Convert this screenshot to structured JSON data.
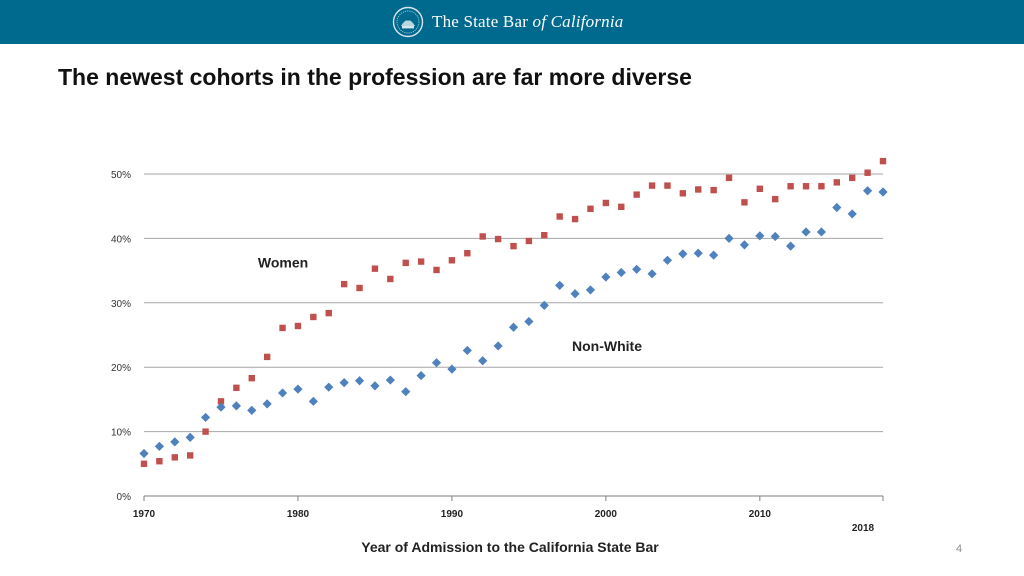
{
  "header": {
    "brand_prefix": "The State Bar ",
    "brand_emphasis": "of California",
    "logo_icon": "state-bar-seal-icon",
    "background_color": "#006a8e"
  },
  "slide": {
    "title": "The newest cohorts in the profession are far more diverse",
    "page_number": "4"
  },
  "chart_data": {
    "type": "scatter",
    "title": "",
    "xlabel": "Year of Admission to the California State Bar",
    "ylabel": "",
    "xlim": [
      1970,
      2018
    ],
    "ylim": [
      0,
      50
    ],
    "grid": true,
    "x_ticks": [
      1970,
      1980,
      1990,
      2000,
      2010,
      2018
    ],
    "y_ticks": [
      "0%",
      "10%",
      "20%",
      "30%",
      "40%",
      "50%"
    ],
    "y_tick_values": [
      0,
      10,
      20,
      30,
      40,
      50
    ],
    "series": [
      {
        "name": "Women",
        "marker": "square",
        "color": "#c0504d",
        "points": [
          [
            1970,
            5.0
          ],
          [
            1971,
            5.4
          ],
          [
            1972,
            6.0
          ],
          [
            1973,
            6.3
          ],
          [
            1974,
            10.0
          ],
          [
            1975,
            14.7
          ],
          [
            1976,
            16.8
          ],
          [
            1977,
            18.3
          ],
          [
            1978,
            21.6
          ],
          [
            1979,
            26.1
          ],
          [
            1980,
            26.4
          ],
          [
            1981,
            27.8
          ],
          [
            1982,
            28.4
          ],
          [
            1983,
            32.9
          ],
          [
            1984,
            32.3
          ],
          [
            1985,
            35.3
          ],
          [
            1986,
            33.7
          ],
          [
            1987,
            36.2
          ],
          [
            1988,
            36.4
          ],
          [
            1989,
            35.1
          ],
          [
            1990,
            36.6
          ],
          [
            1991,
            37.7
          ],
          [
            1992,
            40.3
          ],
          [
            1993,
            39.9
          ],
          [
            1994,
            38.8
          ],
          [
            1995,
            39.6
          ],
          [
            1996,
            40.5
          ],
          [
            1997,
            43.4
          ],
          [
            1998,
            43.0
          ],
          [
            1999,
            44.6
          ],
          [
            2000,
            45.5
          ],
          [
            2001,
            44.9
          ],
          [
            2002,
            46.8
          ],
          [
            2003,
            48.2
          ],
          [
            2004,
            48.2
          ],
          [
            2005,
            47.0
          ],
          [
            2006,
            47.6
          ],
          [
            2007,
            47.5
          ],
          [
            2008,
            49.4
          ],
          [
            2009,
            45.6
          ],
          [
            2010,
            47.7
          ],
          [
            2011,
            46.1
          ],
          [
            2012,
            48.1
          ],
          [
            2013,
            48.1
          ],
          [
            2014,
            48.1
          ],
          [
            2015,
            48.7
          ],
          [
            2016,
            49.4
          ],
          [
            2017,
            50.2
          ],
          [
            2018,
            52.0
          ]
        ]
      },
      {
        "name": "Non-White",
        "marker": "diamond",
        "color": "#4f81bd",
        "points": [
          [
            1970,
            6.6
          ],
          [
            1971,
            7.7
          ],
          [
            1972,
            8.4
          ],
          [
            1973,
            9.1
          ],
          [
            1974,
            12.2
          ],
          [
            1975,
            13.8
          ],
          [
            1976,
            14.0
          ],
          [
            1977,
            13.3
          ],
          [
            1978,
            14.3
          ],
          [
            1979,
            16.0
          ],
          [
            1980,
            16.6
          ],
          [
            1981,
            14.7
          ],
          [
            1982,
            16.9
          ],
          [
            1983,
            17.6
          ],
          [
            1984,
            17.9
          ],
          [
            1985,
            17.1
          ],
          [
            1986,
            18.0
          ],
          [
            1987,
            16.2
          ],
          [
            1988,
            18.7
          ],
          [
            1989,
            20.7
          ],
          [
            1990,
            19.7
          ],
          [
            1991,
            22.6
          ],
          [
            1992,
            21.0
          ],
          [
            1993,
            23.3
          ],
          [
            1994,
            26.2
          ],
          [
            1995,
            27.1
          ],
          [
            1996,
            29.6
          ],
          [
            1997,
            32.7
          ],
          [
            1998,
            31.4
          ],
          [
            1999,
            32.0
          ],
          [
            2000,
            34.0
          ],
          [
            2001,
            34.7
          ],
          [
            2002,
            35.2
          ],
          [
            2003,
            34.5
          ],
          [
            2004,
            36.6
          ],
          [
            2005,
            37.6
          ],
          [
            2006,
            37.7
          ],
          [
            2007,
            37.4
          ],
          [
            2008,
            40.0
          ],
          [
            2009,
            39.0
          ],
          [
            2010,
            40.4
          ],
          [
            2011,
            40.3
          ],
          [
            2012,
            38.8
          ],
          [
            2013,
            41.0
          ],
          [
            2014,
            41.0
          ],
          [
            2015,
            44.8
          ],
          [
            2016,
            43.8
          ],
          [
            2017,
            47.4
          ],
          [
            2018,
            47.2
          ]
        ]
      }
    ],
    "annotations": [
      {
        "text": "Women",
        "x": 1977.4,
        "y": 35.5,
        "series": "Women"
      },
      {
        "text": "Non-White",
        "x": 1997.8,
        "y": 22.5,
        "series": "Non-White"
      }
    ]
  }
}
